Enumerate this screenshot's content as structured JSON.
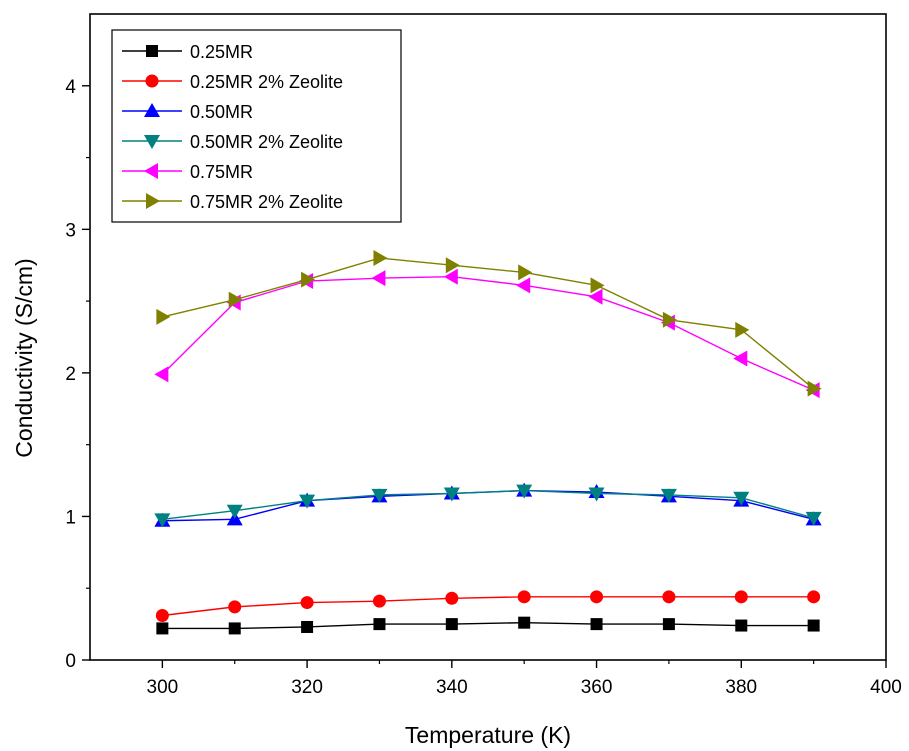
{
  "chart_data": {
    "type": "line",
    "title": "",
    "xlabel": "Temperature (K)",
    "ylabel": "Conductivity (S/cm)",
    "xlim": [
      290,
      400
    ],
    "ylim": [
      0,
      4.5
    ],
    "xticks": [
      300,
      320,
      340,
      360,
      380,
      400
    ],
    "yticks": [
      0,
      1,
      2,
      3,
      4
    ],
    "grid": false,
    "legend_position": "top-left",
    "x": [
      300,
      310,
      320,
      330,
      340,
      350,
      360,
      370,
      380,
      390
    ],
    "series": [
      {
        "name": "0.25MR",
        "color": "#000000",
        "marker": "square",
        "values": [
          0.22,
          0.22,
          0.23,
          0.25,
          0.25,
          0.26,
          0.25,
          0.25,
          0.24,
          0.24
        ]
      },
      {
        "name": "0.25MR 2% Zeolite",
        "color": "#ff0000",
        "marker": "circle",
        "values": [
          0.31,
          0.37,
          0.4,
          0.41,
          0.43,
          0.44,
          0.44,
          0.44,
          0.44,
          0.44
        ]
      },
      {
        "name": "0.50MR",
        "color": "#0000ff",
        "marker": "triangle-up",
        "values": [
          0.97,
          0.98,
          1.11,
          1.14,
          1.16,
          1.18,
          1.17,
          1.14,
          1.11,
          0.98
        ]
      },
      {
        "name": "0.50MR 2% Zeolite",
        "color": "#008080",
        "marker": "triangle-down",
        "values": [
          0.98,
          1.04,
          1.11,
          1.15,
          1.16,
          1.18,
          1.16,
          1.15,
          1.13,
          0.99
        ]
      },
      {
        "name": "0.75MR",
        "color": "#ff00ff",
        "marker": "triangle-left",
        "values": [
          1.99,
          2.49,
          2.64,
          2.66,
          2.67,
          2.61,
          2.53,
          2.35,
          2.1,
          1.88
        ]
      },
      {
        "name": "0.75MR 2% Zeolite",
        "color": "#808000",
        "marker": "triangle-right",
        "values": [
          2.39,
          2.51,
          2.65,
          2.8,
          2.75,
          2.7,
          2.61,
          2.37,
          2.3,
          1.89
        ]
      }
    ]
  }
}
